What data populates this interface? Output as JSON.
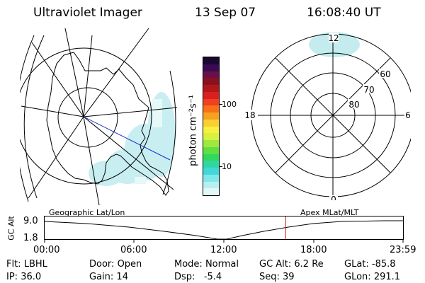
{
  "header": {
    "instrument": "Ultraviolet Imager",
    "date": "13 Sep 07",
    "time": "16:08:40 UT"
  },
  "colorbar": {
    "unit_label": "photon cm⁻²s⁻¹",
    "ticks": [
      "100",
      "10"
    ],
    "colors": [
      "#1a0830",
      "#3a0a52",
      "#6a0f4a",
      "#8a1020",
      "#b01818",
      "#d82020",
      "#f04020",
      "#f87018",
      "#f8a020",
      "#f8d030",
      "#f8f040",
      "#d8f040",
      "#a0e840",
      "#60e040",
      "#30d860",
      "#30d8a0",
      "#40d8d8",
      "#80e8e8",
      "#b8f0f0",
      "#e0f8f8"
    ]
  },
  "geo_map": {
    "label": "Geographic Lat/Lon"
  },
  "mlt_map": {
    "label": "Apex MLat/MLT",
    "mlt_labels": {
      "top": "12",
      "left": "18",
      "right": "6",
      "bottom": "0"
    },
    "lat_labels": [
      "60",
      "70",
      "80"
    ]
  },
  "timeline": {
    "ylabel": "GC Alt",
    "ytick_top": "9.0",
    "ytick_bottom": "1.8",
    "xticks": [
      "00:00",
      "06:00",
      "12:00",
      "18:00",
      "23:59"
    ],
    "current_time_hours": 16.14
  },
  "info": {
    "row1": [
      {
        "label": "Flt:",
        "value": "LBHL"
      },
      {
        "label": "Door:",
        "value": "Open"
      },
      {
        "label": "Mode:",
        "value": "Normal"
      },
      {
        "label": "GC Alt:",
        "value": "6.2 Re"
      },
      {
        "label": "GLat:",
        "value": "-85.8"
      }
    ],
    "row2": [
      {
        "label": "IP:",
        "value": "36.0"
      },
      {
        "label": "Gain:",
        "value": "14"
      },
      {
        "label": "Dsp:",
        "value": "-5.4"
      },
      {
        "label": "Seq:",
        "value": "39"
      },
      {
        "label": "GLon:",
        "value": "291.1"
      }
    ]
  }
}
